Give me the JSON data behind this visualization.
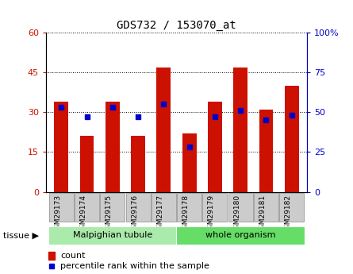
{
  "title": "GDS732 / 153070_at",
  "samples": [
    "GSM29173",
    "GSM29174",
    "GSM29175",
    "GSM29176",
    "GSM29177",
    "GSM29178",
    "GSM29179",
    "GSM29180",
    "GSM29181",
    "GSM29182"
  ],
  "counts": [
    34,
    21,
    34,
    21,
    47,
    22,
    34,
    47,
    31,
    40
  ],
  "percentile_vals": [
    53,
    47,
    53,
    47,
    55,
    28,
    47,
    51,
    45,
    48
  ],
  "left_ylim": [
    0,
    60
  ],
  "right_ylim": [
    0,
    100
  ],
  "left_yticks": [
    0,
    15,
    30,
    45,
    60
  ],
  "right_yticks": [
    0,
    25,
    50,
    75,
    100
  ],
  "bar_color": "#CC1100",
  "marker_color": "#0000CC",
  "tissue_groups": [
    {
      "label": "Malpighian tubule",
      "start": 0,
      "end": 5,
      "color": "#AAEAAA"
    },
    {
      "label": "whole organism",
      "start": 5,
      "end": 10,
      "color": "#66DD66"
    }
  ],
  "tissue_label": "tissue",
  "legend_count_label": "count",
  "legend_percentile_label": "percentile rank within the sample",
  "bg_color": "#FFFFFF",
  "tick_label_color_left": "#CC1100",
  "tick_label_color_right": "#0000CC",
  "grid_color": "#000000",
  "bar_width": 0.55,
  "xlabel_box_color": "#CCCCCC",
  "xlabel_box_edge": "#888888"
}
